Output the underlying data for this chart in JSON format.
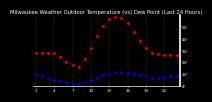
{
  "title": "Milwaukee Weather Outdoor Temperature (vs) Dew Point (Last 24 Hours)",
  "bg_color": "#000000",
  "plot_bg_color": "#000000",
  "grid_color": "#555555",
  "temp_color": "#ff0000",
  "dew_color": "#0000ff",
  "temp_data": [
    32,
    32,
    32,
    32,
    28,
    24,
    22,
    20,
    27,
    36,
    46,
    54,
    60,
    62,
    61,
    57,
    49,
    42,
    36,
    32,
    31,
    30,
    30,
    30
  ],
  "dew_data": [
    14,
    12,
    10,
    9,
    8,
    7,
    6,
    6,
    7,
    9,
    11,
    13,
    14,
    15,
    16,
    15,
    14,
    13,
    12,
    11,
    11,
    11,
    12,
    12
  ],
  "n_points": 24,
  "ylim": [
    4,
    64
  ],
  "yticks": [
    4,
    14,
    24,
    34,
    44,
    54
  ],
  "ytick_labels": [
    "4°",
    "14°",
    "24°",
    "34°",
    "44°",
    "54°"
  ],
  "title_fontsize": 3.8,
  "tick_fontsize": 2.8,
  "marker_size": 1.8,
  "linewidth": 0.5
}
